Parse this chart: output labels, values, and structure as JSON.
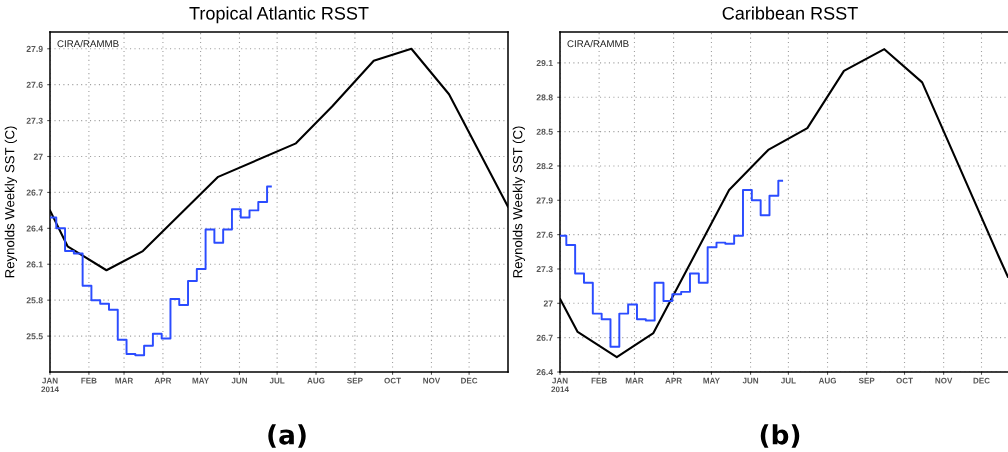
{
  "chart_data": [
    {
      "type": "line",
      "title": "Tropical Atlantic RSST",
      "ylabel": "Reynolds Weekly SST (C)",
      "annotations": [
        "CIRA/RAMMB",
        "(a)"
      ],
      "xlim": [
        "2014-01-01",
        "2015-01-01"
      ],
      "ylim": [
        25.2,
        28.04
      ],
      "xticks": [
        {
          "value": "2014-01-01",
          "label": "JAN\n2014"
        },
        {
          "value": "2014-02-01",
          "label": "FEB"
        },
        {
          "value": "2014-03-01",
          "label": "MAR"
        },
        {
          "value": "2014-04-01",
          "label": "APR"
        },
        {
          "value": "2014-05-01",
          "label": "MAY"
        },
        {
          "value": "2014-06-01",
          "label": "JUN"
        },
        {
          "value": "2014-07-01",
          "label": "JUL"
        },
        {
          "value": "2014-08-01",
          "label": "AUG"
        },
        {
          "value": "2014-09-01",
          "label": "SEP"
        },
        {
          "value": "2014-10-01",
          "label": "OCT"
        },
        {
          "value": "2014-11-01",
          "label": "NOV"
        },
        {
          "value": "2014-12-01",
          "label": "DEC"
        }
      ],
      "yticks": [
        25.5,
        25.8,
        26.1,
        26.4,
        26.7,
        27,
        27.3,
        27.6,
        27.9
      ],
      "grid": true,
      "series": [
        {
          "color": "#000000",
          "x": [
            "2014-01-01",
            "2014-01-15",
            "2014-02-15",
            "2014-03-16",
            "2014-05-15",
            "2014-07-16",
            "2014-08-14",
            "2014-09-16",
            "2014-10-16",
            "2014-11-15",
            "2015-01-01"
          ],
          "values": [
            26.55,
            26.25,
            26.05,
            26.21,
            26.83,
            27.11,
            27.42,
            27.8,
            27.9,
            27.52,
            26.58
          ]
        },
        {
          "type": "step",
          "color": "#2b4cff",
          "x": [
            "2014-01-01",
            "2014-01-06",
            "2014-01-13",
            "2014-01-20",
            "2014-01-27",
            "2014-02-03",
            "2014-02-10",
            "2014-02-17",
            "2014-02-24",
            "2014-03-03",
            "2014-03-10",
            "2014-03-17",
            "2014-03-24",
            "2014-03-31",
            "2014-04-07",
            "2014-04-14",
            "2014-04-21",
            "2014-04-28",
            "2014-05-05",
            "2014-05-12",
            "2014-05-19",
            "2014-05-26",
            "2014-06-02",
            "2014-06-09",
            "2014-06-16",
            "2014-06-23",
            "2014-06-26"
          ],
          "values": [
            26.49,
            26.4,
            26.21,
            26.19,
            25.92,
            25.8,
            25.77,
            25.72,
            25.47,
            25.35,
            25.34,
            25.42,
            25.52,
            25.48,
            25.81,
            25.76,
            25.96,
            26.06,
            26.39,
            26.28,
            26.39,
            26.56,
            26.49,
            26.55,
            26.62,
            26.75,
            26.75
          ]
        }
      ]
    },
    {
      "type": "line",
      "title": "Caribbean RSST",
      "ylabel": "Reynolds Weekly SST (C)",
      "annotations": [
        "CIRA/RAMMB",
        "(b)"
      ],
      "xlim": [
        "2014-01-01",
        "2014-12-22"
      ],
      "ylim": [
        26.4,
        29.37
      ],
      "xticks": [
        {
          "value": "2014-01-01",
          "label": "JAN\n2014"
        },
        {
          "value": "2014-02-01",
          "label": "FEB"
        },
        {
          "value": "2014-03-01",
          "label": "MAR"
        },
        {
          "value": "2014-04-01",
          "label": "APR"
        },
        {
          "value": "2014-05-01",
          "label": "MAY"
        },
        {
          "value": "2014-06-01",
          "label": "JUN"
        },
        {
          "value": "2014-07-01",
          "label": "JUL"
        },
        {
          "value": "2014-08-01",
          "label": "AUG"
        },
        {
          "value": "2014-09-01",
          "label": "SEP"
        },
        {
          "value": "2014-10-01",
          "label": "OCT"
        },
        {
          "value": "2014-11-01",
          "label": "NOV"
        },
        {
          "value": "2014-12-01",
          "label": "DEC"
        }
      ],
      "yticks": [
        26.4,
        26.7,
        27,
        27.3,
        27.6,
        27.9,
        28.2,
        28.5,
        28.8,
        29.1
      ],
      "grid": true,
      "series": [
        {
          "color": "#000000",
          "x": [
            "2014-01-01",
            "2014-01-15",
            "2014-02-15",
            "2014-03-16",
            "2014-05-15",
            "2014-06-15",
            "2014-07-16",
            "2014-08-14",
            "2014-09-15",
            "2014-10-15",
            "2014-12-15",
            "2014-12-22"
          ],
          "values": [
            27.04,
            26.75,
            26.53,
            26.74,
            27.99,
            28.34,
            28.53,
            29.03,
            29.22,
            28.93,
            27.4,
            27.23
          ]
        },
        {
          "type": "step",
          "color": "#2b4cff",
          "x": [
            "2014-01-01",
            "2014-01-06",
            "2014-01-13",
            "2014-01-20",
            "2014-01-27",
            "2014-02-03",
            "2014-02-10",
            "2014-02-17",
            "2014-02-24",
            "2014-03-03",
            "2014-03-10",
            "2014-03-17",
            "2014-03-24",
            "2014-03-31",
            "2014-04-07",
            "2014-04-14",
            "2014-04-21",
            "2014-04-28",
            "2014-05-05",
            "2014-05-12",
            "2014-05-19",
            "2014-05-26",
            "2014-06-02",
            "2014-06-09",
            "2014-06-16",
            "2014-06-23",
            "2014-06-26"
          ],
          "values": [
            27.59,
            27.51,
            27.26,
            27.18,
            26.91,
            26.86,
            26.62,
            26.91,
            26.99,
            26.86,
            26.85,
            27.18,
            27.02,
            27.08,
            27.1,
            27.26,
            27.18,
            27.49,
            27.53,
            27.52,
            27.59,
            27.99,
            27.9,
            27.77,
            27.94,
            28.07,
            28.07
          ]
        }
      ]
    }
  ]
}
